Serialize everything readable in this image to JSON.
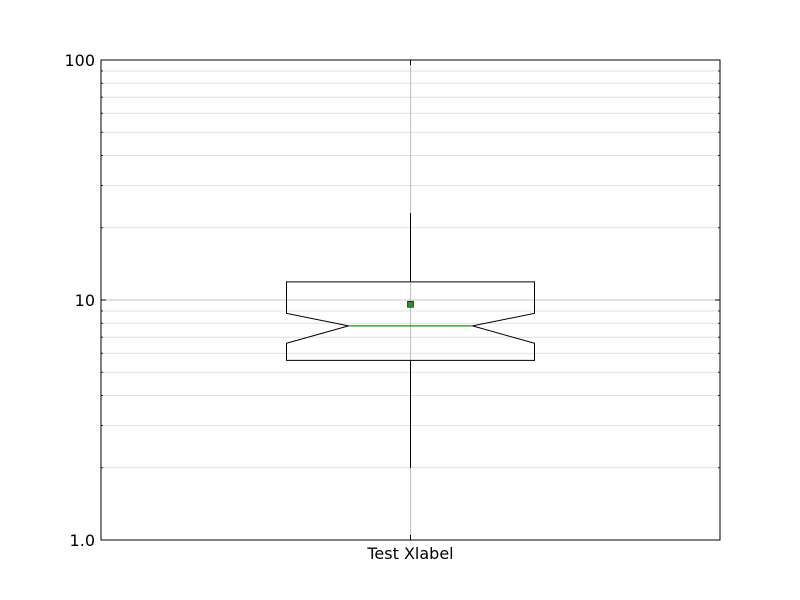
{
  "chart_data": {
    "type": "box",
    "title": "",
    "xlabel": "Test Xlabel",
    "ylabel": "",
    "yscale": "log",
    "ylim": [
      1,
      100
    ],
    "ytick_values": [
      1,
      10,
      100
    ],
    "ytick_labels": [
      "1.0",
      "10",
      "100"
    ],
    "grid": true,
    "notched": true,
    "boxes": [
      {
        "whisker_low": 2.0,
        "q1": 5.6,
        "notch_low": 6.6,
        "median": 7.8,
        "notch_high": 8.8,
        "q3": 11.9,
        "whisker_high": 23.0,
        "mean": 9.6
      }
    ],
    "colors": {
      "box": "#000000",
      "median": "#00a000",
      "mean_marker": "#2e8b2e",
      "grid": "#b0b0b0"
    }
  }
}
